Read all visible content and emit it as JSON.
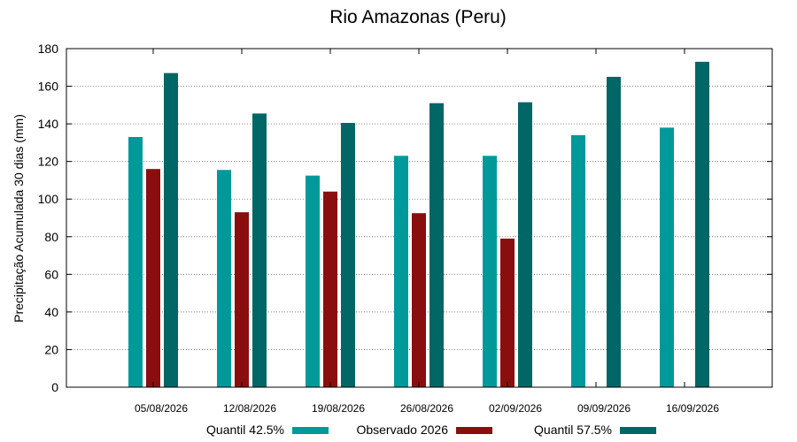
{
  "chart_data": {
    "type": "bar",
    "title": "Rio Amazonas (Peru)",
    "xlabel": "",
    "ylabel": "Precipitação Acumulada 30 dias (mm)",
    "ylim": [
      0,
      180
    ],
    "yticks": [
      0,
      20,
      40,
      60,
      80,
      100,
      120,
      140,
      160,
      180
    ],
    "grid": true,
    "legend_position": "bottom",
    "categories": [
      "05/08/2026",
      "12/08/2026",
      "19/08/2026",
      "26/08/2026",
      "02/09/2026",
      "09/09/2026",
      "16/09/2026"
    ],
    "series": [
      {
        "name": "Quantil 42.5%",
        "color": "#009999",
        "values": [
          133,
          115.5,
          112.5,
          123,
          123,
          134,
          138
        ]
      },
      {
        "name": "Observado 2026",
        "color": "#8b0e0e",
        "values": [
          116,
          93,
          104,
          92.5,
          79,
          null,
          null
        ]
      },
      {
        "name": "Quantil 57.5%",
        "color": "#006666",
        "values": [
          167,
          145.5,
          140.5,
          151,
          151.5,
          165,
          173
        ]
      }
    ]
  }
}
